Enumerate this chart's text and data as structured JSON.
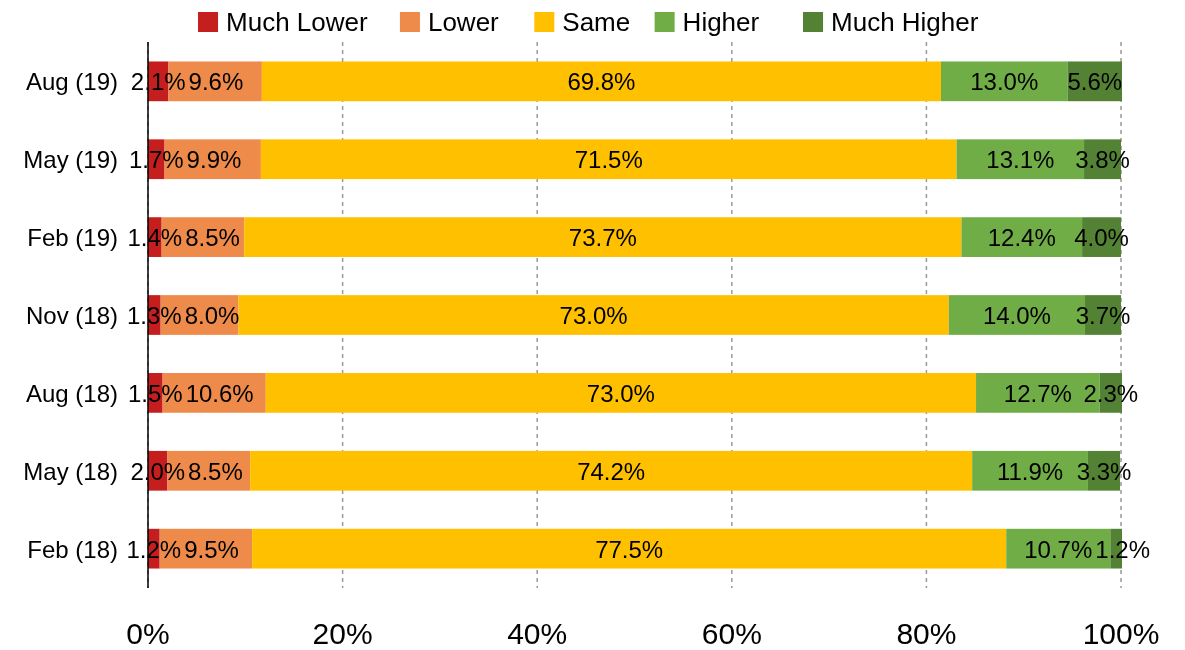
{
  "chart_data": {
    "type": "bar",
    "orientation": "horizontal",
    "stacked": true,
    "categories": [
      "Aug (19)",
      "May (19)",
      "Feb (19)",
      "Nov (18)",
      "Aug (18)",
      "May (18)",
      "Feb (18)"
    ],
    "series": [
      {
        "name": "Much Lower",
        "color": "#c41e1e",
        "values": [
          2.1,
          1.7,
          1.4,
          1.3,
          1.5,
          2.0,
          1.2
        ],
        "value_labels": [
          "2.1%",
          "1.7%",
          "1.4%",
          "1.3%",
          "1.5%",
          "2.0%",
          "1.2%"
        ]
      },
      {
        "name": "Lower",
        "color": "#ee8a4a",
        "values": [
          9.6,
          9.9,
          8.5,
          8.0,
          10.6,
          8.5,
          9.5
        ],
        "value_labels": [
          "9.6%",
          "9.9%",
          "8.5%",
          "8.0%",
          "10.6%",
          "8.5%",
          "9.5%"
        ]
      },
      {
        "name": "Same",
        "color": "#ffc000",
        "values": [
          69.8,
          71.5,
          73.7,
          73.0,
          73.0,
          74.2,
          77.5
        ],
        "value_labels": [
          "69.8%",
          "71.5%",
          "73.7%",
          "73.0%",
          "73.0%",
          "74.2%",
          "77.5%"
        ]
      },
      {
        "name": "Higher",
        "color": "#70ad47",
        "values": [
          13.0,
          13.1,
          12.4,
          14.0,
          12.7,
          11.9,
          10.7
        ],
        "value_labels": [
          "13.0%",
          "13.1%",
          "12.4%",
          "14.0%",
          "12.7%",
          "11.9%",
          "10.7%"
        ]
      },
      {
        "name": "Much Higher",
        "color": "#548235",
        "values": [
          5.6,
          3.8,
          4.0,
          3.7,
          2.3,
          3.3,
          1.2
        ],
        "value_labels": [
          "5.6%",
          "3.8%",
          "4.0%",
          "3.7%",
          "2.3%",
          "3.3%",
          "1.2%"
        ]
      }
    ],
    "xlim": [
      0,
      100.1
    ],
    "xticks": [
      {
        "value": 0,
        "label": "0%"
      },
      {
        "value": 20,
        "label": "20%"
      },
      {
        "value": 40,
        "label": "40%"
      },
      {
        "value": 60,
        "label": "60%"
      },
      {
        "value": 80,
        "label": "80%"
      },
      {
        "value": 100,
        "label": "100%"
      }
    ],
    "grid": "x",
    "legend": "top"
  }
}
